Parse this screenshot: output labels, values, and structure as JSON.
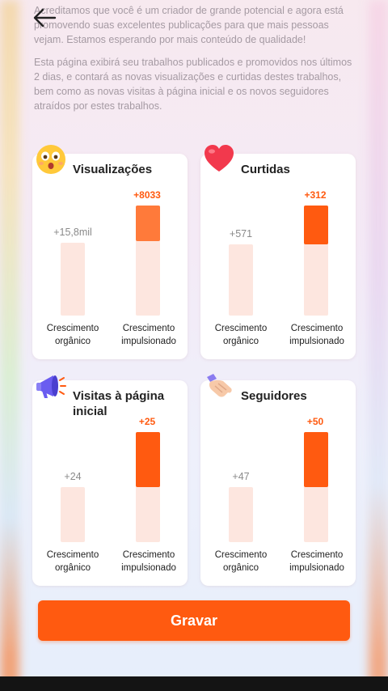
{
  "intro": {
    "paragraph1": "Acreditamos que você é um criador de grande potencial e agora está promovendo suas excelentes publicações para que mais pessoas vejam. Estamos esperando por mais conteúdo de qualidade!",
    "paragraph2": "Esta página exibirá seu trabalhos publicados e promovidos nos últimos 2 dias, e contará as novas visualizações e curtidas destes trabalhos, bem como as novas visitas à página inicial e os novos seguidores atraídos por estes trabalhos."
  },
  "labels": {
    "organic": "Crescimento orgânico",
    "boosted": "Crescimento impulsionado"
  },
  "cards": [
    {
      "title": "Visualizações",
      "icon": "surprised-face-icon",
      "organic": "+15,8mil",
      "boosted": "+8033",
      "organic_level": 0.0,
      "boosted_level": 0.32
    },
    {
      "title": "Curtidas",
      "icon": "heart-icon",
      "organic": "+571",
      "boosted": "+312",
      "organic_level": 0.0,
      "boosted_level": 0.35
    },
    {
      "title": "Visitas à página inicial",
      "icon": "megaphone-icon",
      "organic": "+24",
      "boosted": "+25",
      "organic_level": 0.0,
      "boosted_level": 0.5
    },
    {
      "title": "Seguidores",
      "icon": "handshake-icon",
      "organic": "+47",
      "boosted": "+50",
      "organic_level": 0.0,
      "boosted_level": 0.5
    }
  ],
  "button": {
    "label": "Gravar"
  },
  "colors": {
    "accent": "#ff5a10",
    "track": "#fde6df",
    "intro_text": "#a59aa3"
  }
}
